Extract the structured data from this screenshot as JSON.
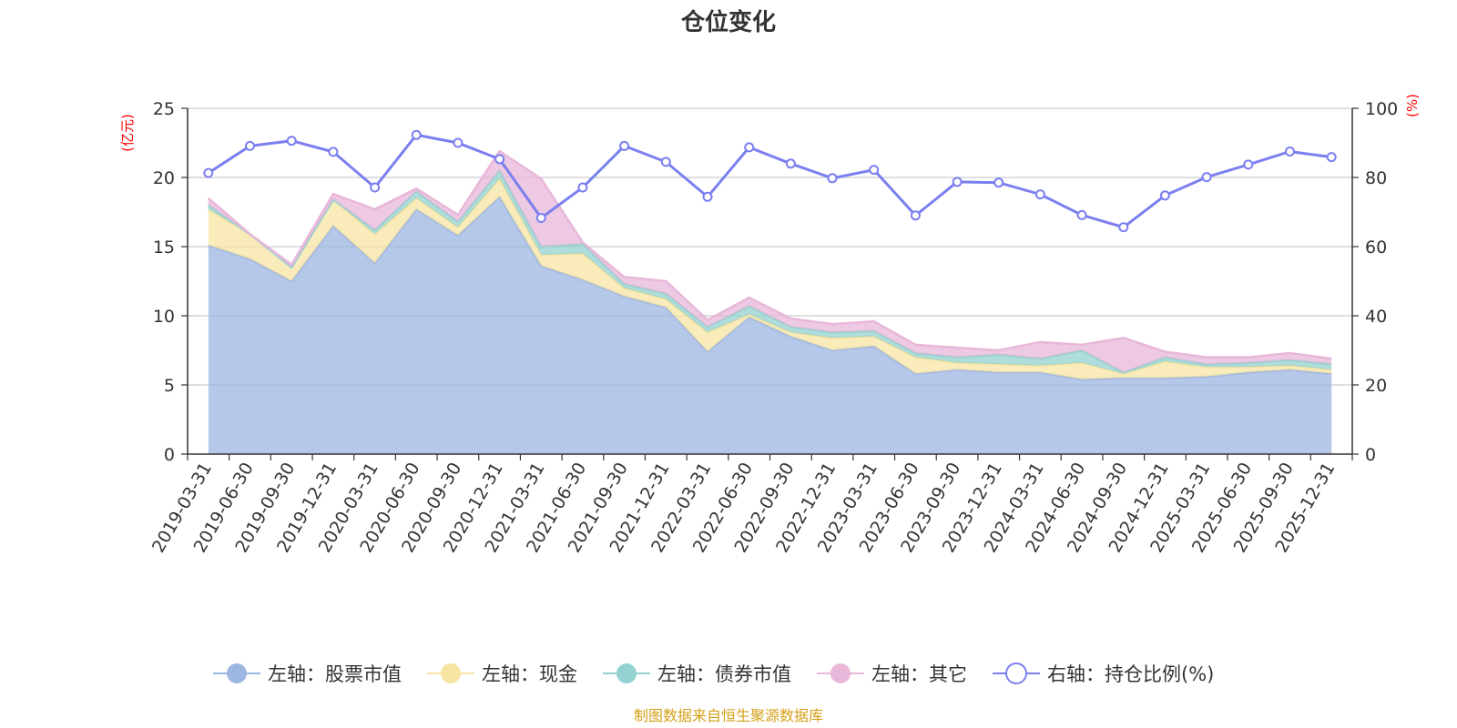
{
  "chart_data": {
    "type": "area",
    "title": "仓位变化",
    "left_unit": "(亿元)",
    "right_unit": "(%)",
    "left_ylim": [
      0,
      25
    ],
    "left_ticks": [
      0,
      5,
      10,
      15,
      20,
      25
    ],
    "right_ylim": [
      0,
      100
    ],
    "right_ticks": [
      0,
      20,
      40,
      60,
      80,
      100
    ],
    "categories": [
      "2019-03-31",
      "2019-06-30",
      "2019-09-30",
      "2019-12-31",
      "2020-03-31",
      "2020-06-30",
      "2020-09-30",
      "2020-12-31",
      "2021-03-31",
      "2021-06-30",
      "2021-09-30",
      "2021-12-31",
      "2022-03-31",
      "2022-06-30",
      "2022-09-30",
      "2022-12-31",
      "2023-03-31",
      "2023-06-30",
      "2023-09-30",
      "2023-12-31",
      "2024-03-31",
      "2024-06-30",
      "2024-09-30",
      "2024-12-31",
      "2025-03-31",
      "2025-06-30",
      "2025-09-30",
      "2025-12-31"
    ],
    "stacked_series": [
      {
        "name": "左轴：股票市值",
        "color": "#9db6e1",
        "values": [
          15.1,
          14.1,
          12.5,
          16.5,
          13.8,
          17.7,
          15.8,
          18.6,
          13.6,
          12.6,
          11.4,
          10.6,
          7.4,
          9.9,
          8.5,
          7.5,
          7.8,
          5.8,
          6.1,
          5.9,
          5.9,
          5.4,
          5.5,
          5.5,
          5.6,
          5.9,
          6.1,
          5.8
        ]
      },
      {
        "name": "左轴：现金",
        "color": "#f7e4a3",
        "values": [
          2.6,
          1.8,
          1.0,
          1.9,
          2.1,
          0.8,
          0.6,
          1.3,
          0.8,
          1.9,
          0.6,
          0.6,
          1.4,
          0.2,
          0.3,
          0.9,
          0.7,
          1.2,
          0.5,
          0.6,
          0.5,
          1.2,
          0.3,
          1.2,
          0.7,
          0.4,
          0.3,
          0.3
        ]
      },
      {
        "name": "左轴：债券市值",
        "color": "#93d2d0",
        "values": [
          0.3,
          0.0,
          0.0,
          0.0,
          0.3,
          0.5,
          0.4,
          0.6,
          0.6,
          0.7,
          0.3,
          0.4,
          0.4,
          0.6,
          0.4,
          0.4,
          0.4,
          0.3,
          0.4,
          0.7,
          0.5,
          0.9,
          0.1,
          0.3,
          0.2,
          0.3,
          0.4,
          0.4
        ]
      },
      {
        "name": "左轴：其它",
        "color": "#e8b7d9",
        "values": [
          0.5,
          0.0,
          0.2,
          0.4,
          1.5,
          0.2,
          0.5,
          1.4,
          4.9,
          0.1,
          0.5,
          0.9,
          0.5,
          0.6,
          0.6,
          0.6,
          0.7,
          0.6,
          0.7,
          0.3,
          1.2,
          0.4,
          2.5,
          0.4,
          0.5,
          0.4,
          0.5,
          0.4
        ]
      }
    ],
    "line_series": {
      "name": "右轴：持仓比例(%)",
      "color": "#7b7ff0",
      "axis": "right",
      "values": [
        81.3,
        89.1,
        90.6,
        87.4,
        77.1,
        92.3,
        90.0,
        85.3,
        68.3,
        77.1,
        89.1,
        84.5,
        74.4,
        88.7,
        84.0,
        79.8,
        82.2,
        69.0,
        78.7,
        78.5,
        75.1,
        69.1,
        65.6,
        74.8,
        80.1,
        83.7,
        87.5,
        85.9
      ]
    },
    "legend_position": "bottom"
  },
  "legend": [
    {
      "label": "左轴：股票市值",
      "color": "#9db6e1",
      "shape": "circle-filled"
    },
    {
      "label": "左轴：现金",
      "color": "#f7e4a3",
      "shape": "circle-filled"
    },
    {
      "label": "左轴：债券市值",
      "color": "#93d2d0",
      "shape": "circle-filled"
    },
    {
      "label": "左轴：其它",
      "color": "#e8b7d9",
      "shape": "circle-filled"
    },
    {
      "label": "右轴：持仓比例(%)",
      "color": "#7b7ff0",
      "shape": "circle-hollow"
    }
  ],
  "source_text": "制图数据来自恒生聚源数据库"
}
